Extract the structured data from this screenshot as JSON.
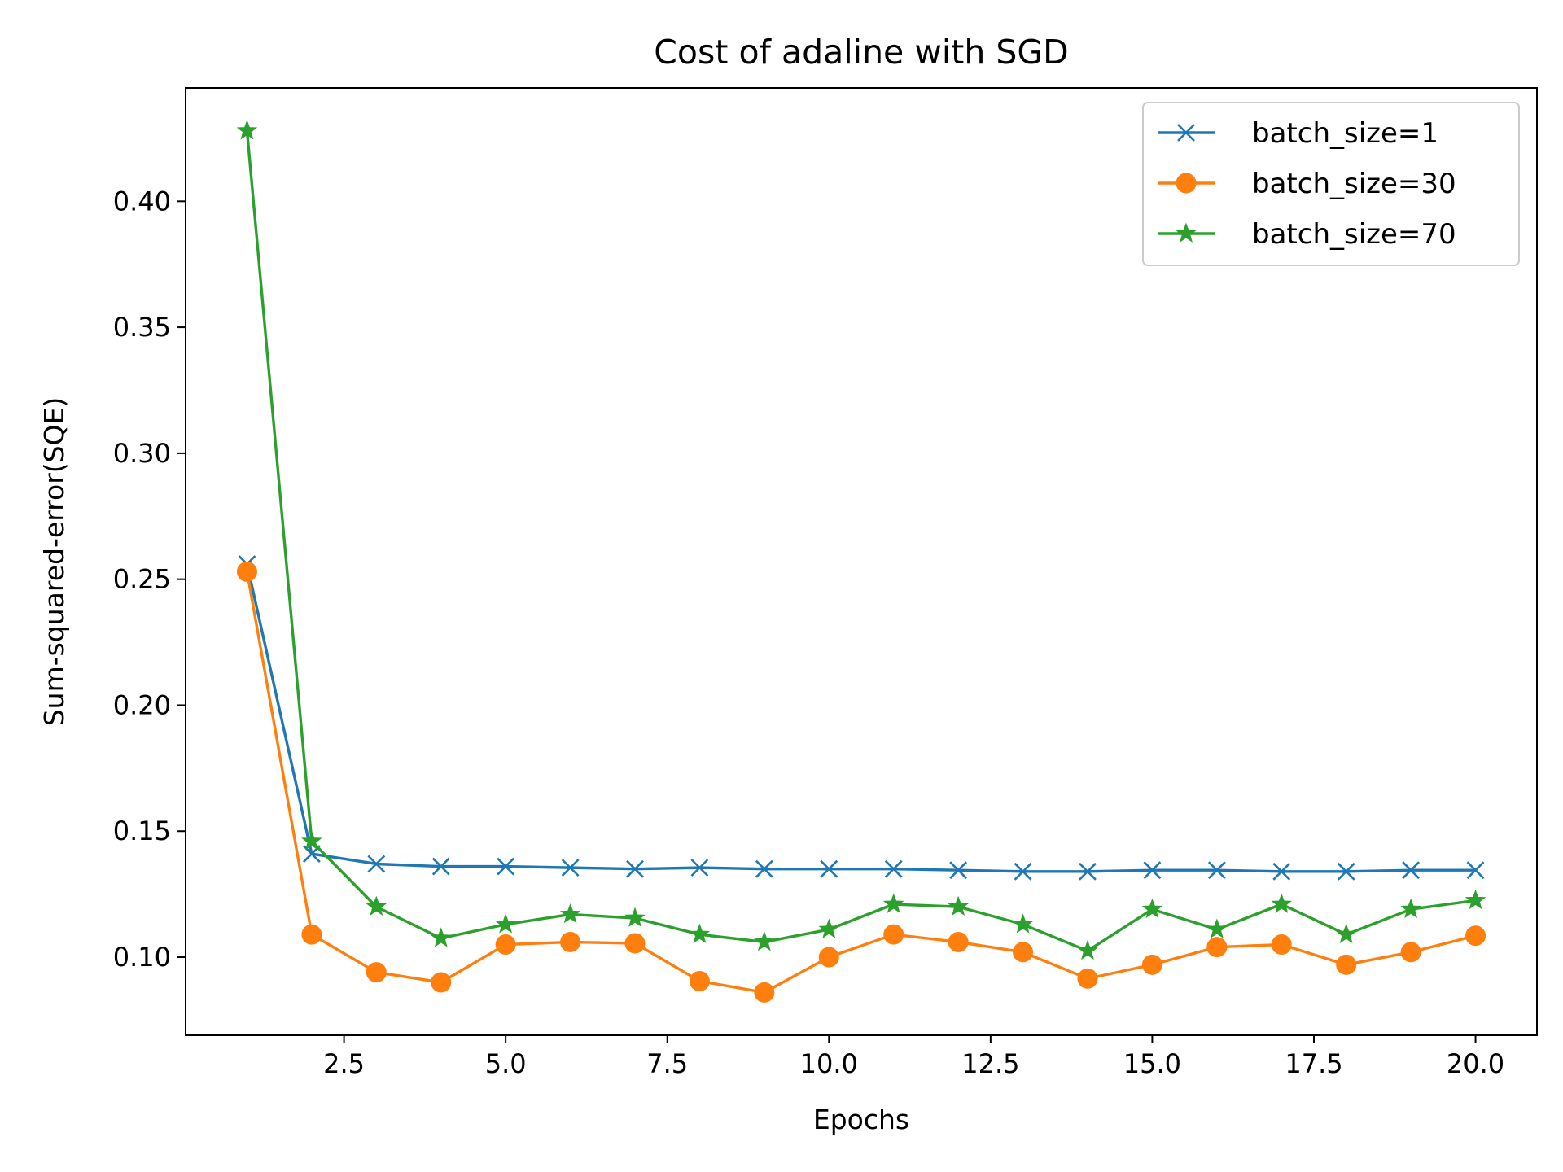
{
  "chart_data": {
    "type": "line",
    "title": "Cost of adaline with SGD",
    "xlabel": "Epochs",
    "ylabel": "Sum-squared-error(SQE)",
    "xlim": [
      0.05,
      20.95
    ],
    "ylim": [
      0.069,
      0.445
    ],
    "xticks": [
      2.5,
      5.0,
      7.5,
      10.0,
      12.5,
      15.0,
      17.5,
      20.0
    ],
    "xtick_labels": [
      "2.5",
      "5.0",
      "7.5",
      "10.0",
      "12.5",
      "15.0",
      "17.5",
      "20.0"
    ],
    "yticks": [
      0.1,
      0.15,
      0.2,
      0.25,
      0.3,
      0.35,
      0.4
    ],
    "ytick_labels": [
      "0.10",
      "0.15",
      "0.20",
      "0.25",
      "0.30",
      "0.35",
      "0.40"
    ],
    "grid": false,
    "legend_position": "top-right",
    "x": [
      1,
      2,
      3,
      4,
      5,
      6,
      7,
      8,
      9,
      10,
      11,
      12,
      13,
      14,
      15,
      16,
      17,
      18,
      19,
      20
    ],
    "series": [
      {
        "name": "batch_size=1",
        "color": "#1f77b4",
        "marker": "x",
        "values": [
          0.256,
          0.141,
          0.137,
          0.136,
          0.136,
          0.1355,
          0.135,
          0.1355,
          0.135,
          0.135,
          0.135,
          0.1345,
          0.134,
          0.134,
          0.1345,
          0.1345,
          0.134,
          0.134,
          0.1345,
          0.1345
        ]
      },
      {
        "name": "batch_size=30",
        "color": "#ff7f0e",
        "marker": "circle",
        "values": [
          0.253,
          0.109,
          0.094,
          0.09,
          0.105,
          0.106,
          0.1055,
          0.0905,
          0.086,
          0.1,
          0.109,
          0.106,
          0.102,
          0.0915,
          0.097,
          0.104,
          0.105,
          0.097,
          0.102,
          0.1085
        ]
      },
      {
        "name": "batch_size=70",
        "color": "#2ca02c",
        "marker": "star",
        "values": [
          0.428,
          0.146,
          0.12,
          0.1075,
          0.113,
          0.117,
          0.1155,
          0.109,
          0.106,
          0.111,
          0.121,
          0.12,
          0.113,
          0.1025,
          0.119,
          0.111,
          0.121,
          0.109,
          0.119,
          0.1225
        ]
      }
    ]
  }
}
